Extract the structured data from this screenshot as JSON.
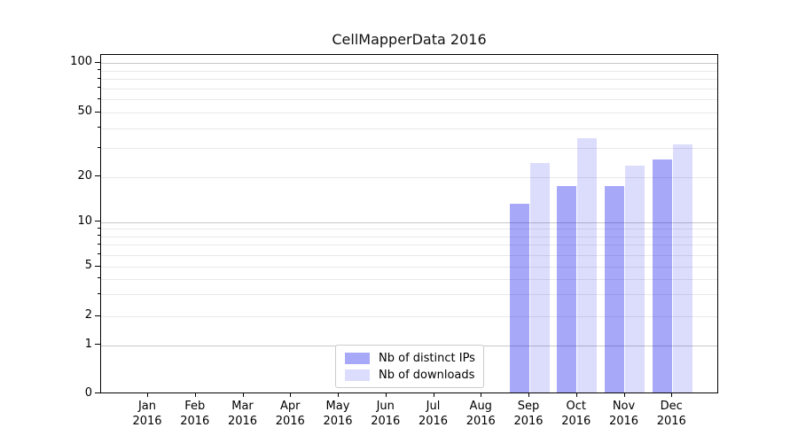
{
  "chart_data": {
    "type": "bar",
    "title": "CellMapperData 2016",
    "categories": [
      "Jan 2016",
      "Feb 2016",
      "Mar 2016",
      "Apr 2016",
      "May 2016",
      "Jun 2016",
      "Jul 2016",
      "Aug 2016",
      "Sep 2016",
      "Oct 2016",
      "Nov 2016",
      "Dec 2016"
    ],
    "series": [
      {
        "name": "Nb of distinct IPs",
        "color": "rgba(20,20,240,0.37)",
        "values": [
          0,
          0,
          0,
          0,
          0,
          0,
          0,
          0,
          13,
          17,
          17,
          25
        ]
      },
      {
        "name": "Nb of downloads",
        "color": "rgba(20,20,240,0.15)",
        "values": [
          0,
          0,
          0,
          0,
          0,
          0,
          0,
          0,
          24,
          34,
          23,
          31
        ]
      }
    ],
    "xlabel": "",
    "ylabel": "",
    "yscale": "log-like with 0 baseline",
    "ylim": [
      0,
      112
    ],
    "yticks_labeled": [
      0,
      1,
      2,
      5,
      10,
      20,
      50,
      100
    ],
    "ytick_labels": [
      "0",
      "1",
      "2",
      "5",
      "10",
      "20",
      "50",
      "100"
    ],
    "yticks_decade": [
      1,
      10,
      100
    ],
    "yticks_minor": [
      3,
      4,
      6,
      7,
      8,
      9,
      30,
      40,
      60,
      70,
      80,
      90
    ],
    "grid": "horizontal, major and minor",
    "legend_position": "lower center"
  },
  "colors": {
    "bar_ips_rendered": "#a8a8fa",
    "bar_downloads_rendered": "#dcdcfc",
    "grid_major": "#c8c8c8",
    "grid_minor": "#e9e9e9",
    "axis": "#000000"
  }
}
